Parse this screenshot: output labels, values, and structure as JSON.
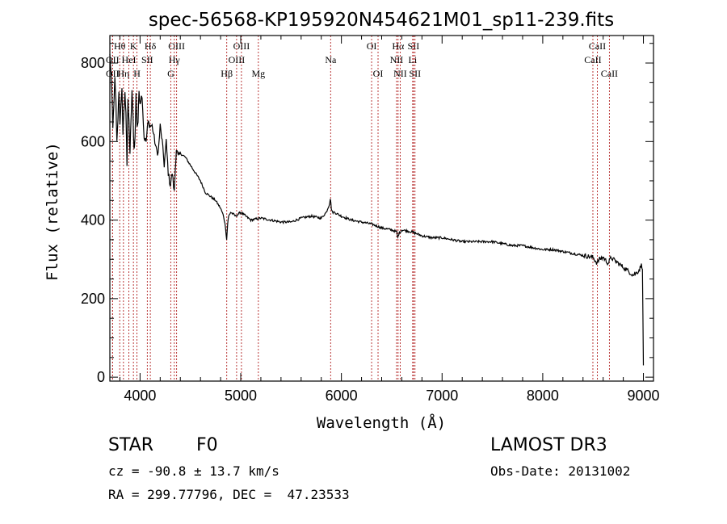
{
  "chart_data": {
    "type": "line",
    "title": "spec-56568-KP195920N454621M01_sp11-239.fits",
    "xlabel": "Wavelength (Å)",
    "ylabel": "Flux (relative)",
    "xlim": [
      3700,
      9100
    ],
    "ylim": [
      -10,
      870
    ],
    "xticks": [
      4000,
      5000,
      6000,
      7000,
      8000,
      9000
    ],
    "yticks": [
      0,
      200,
      400,
      600,
      800
    ],
    "grid": false,
    "series": [
      {
        "name": "flux",
        "x": [
          3700,
          3710,
          3720,
          3730,
          3740,
          3750,
          3760,
          3770,
          3780,
          3790,
          3800,
          3810,
          3820,
          3830,
          3840,
          3850,
          3860,
          3870,
          3880,
          3890,
          3900,
          3910,
          3920,
          3930,
          3940,
          3950,
          3960,
          3970,
          3980,
          3990,
          4000,
          4020,
          4040,
          4060,
          4080,
          4100,
          4120,
          4140,
          4160,
          4180,
          4200,
          4220,
          4240,
          4260,
          4280,
          4300,
          4320,
          4340,
          4350,
          4360,
          4380,
          4400,
          4450,
          4500,
          4550,
          4600,
          4650,
          4700,
          4750,
          4800,
          4830,
          4850,
          4860,
          4870,
          4880,
          4900,
          4950,
          5000,
          5100,
          5200,
          5300,
          5400,
          5500,
          5600,
          5700,
          5800,
          5850,
          5880,
          5890,
          5900,
          5910,
          5930,
          6000,
          6100,
          6200,
          6300,
          6400,
          6500,
          6550,
          6560,
          6570,
          6600,
          6700,
          6800,
          6900,
          7000,
          7100,
          7200,
          7300,
          7400,
          7500,
          7600,
          7700,
          7800,
          7900,
          8000,
          8100,
          8200,
          8300,
          8400,
          8500,
          8540,
          8560,
          8600,
          8650,
          8680,
          8700,
          8750,
          8800,
          8850,
          8900,
          8950,
          8980,
          8990,
          9000
        ],
        "y": [
          820,
          780,
          720,
          640,
          690,
          760,
          700,
          600,
          660,
          720,
          650,
          690,
          740,
          610,
          680,
          720,
          680,
          540,
          700,
          650,
          570,
          650,
          730,
          660,
          580,
          610,
          720,
          640,
          650,
          730,
          700,
          720,
          610,
          600,
          650,
          640,
          640,
          610,
          580,
          570,
          640,
          600,
          540,
          600,
          520,
          490,
          520,
          470,
          530,
          580,
          560,
          570,
          560,
          540,
          520,
          500,
          470,
          460,
          450,
          430,
          410,
          380,
          350,
          390,
          410,
          420,
          410,
          420,
          400,
          405,
          400,
          395,
          395,
          405,
          410,
          405,
          420,
          440,
          455,
          430,
          420,
          420,
          410,
          400,
          395,
          390,
          380,
          375,
          370,
          355,
          365,
          375,
          370,
          360,
          355,
          355,
          350,
          345,
          345,
          345,
          345,
          340,
          335,
          335,
          330,
          325,
          325,
          320,
          315,
          310,
          305,
          290,
          300,
          305,
          290,
          305,
          300,
          290,
          280,
          270,
          260,
          270,
          285,
          280,
          30
        ]
      }
    ],
    "line_markers": [
      {
        "label": "OII",
        "wavelength": 3727,
        "row": 2
      },
      {
        "label": "Hθ",
        "wavelength": 3798,
        "row": 0
      },
      {
        "label": "OII",
        "wavelength": 3727,
        "row": 1
      },
      {
        "label": "Hη",
        "wavelength": 3835,
        "row": 2
      },
      {
        "label": "HeI",
        "wavelength": 3889,
        "row": 1
      },
      {
        "label": "K",
        "wavelength": 3934,
        "row": 0
      },
      {
        "label": "H",
        "wavelength": 3969,
        "row": 2
      },
      {
        "label": "SII",
        "wavelength": 4072,
        "row": 1
      },
      {
        "label": "Hδ",
        "wavelength": 4102,
        "row": 0
      },
      {
        "label": "OIII",
        "wavelength": 4363,
        "row": 0
      },
      {
        "label": "Hγ",
        "wavelength": 4340,
        "row": 1
      },
      {
        "label": "G",
        "wavelength": 4305,
        "row": 2
      },
      {
        "label": "Hβ",
        "wavelength": 4861,
        "row": 2
      },
      {
        "label": "OIII",
        "wavelength": 5007,
        "row": 0
      },
      {
        "label": "OIII",
        "wavelength": 4959,
        "row": 1
      },
      {
        "label": "Mg",
        "wavelength": 5175,
        "row": 2
      },
      {
        "label": "Na",
        "wavelength": 5893,
        "row": 1
      },
      {
        "label": "OI",
        "wavelength": 6300,
        "row": 0
      },
      {
        "label": "OI",
        "wavelength": 6364,
        "row": 2
      },
      {
        "label": "Hα",
        "wavelength": 6563,
        "row": 0
      },
      {
        "label": "NII",
        "wavelength": 6548,
        "row": 1
      },
      {
        "label": "NII",
        "wavelength": 6584,
        "row": 2
      },
      {
        "label": "SII",
        "wavelength": 6716,
        "row": 0
      },
      {
        "label": "Li",
        "wavelength": 6708,
        "row": 1
      },
      {
        "label": "SII",
        "wavelength": 6731,
        "row": 2
      },
      {
        "label": "CaII",
        "wavelength": 8542,
        "row": 0
      },
      {
        "label": "CaII",
        "wavelength": 8498,
        "row": 1
      },
      {
        "label": "CaII",
        "wavelength": 8662,
        "row": 2
      }
    ]
  },
  "info": {
    "object_class": "STAR",
    "subclass": "F0",
    "survey": "LAMOST DR3",
    "redshift": "cz = -90.8 ± 13.7 km/s",
    "obs_date": "Obs-Date: 20131002",
    "coords": "RA = 299.77796, DEC =  47.23533"
  }
}
